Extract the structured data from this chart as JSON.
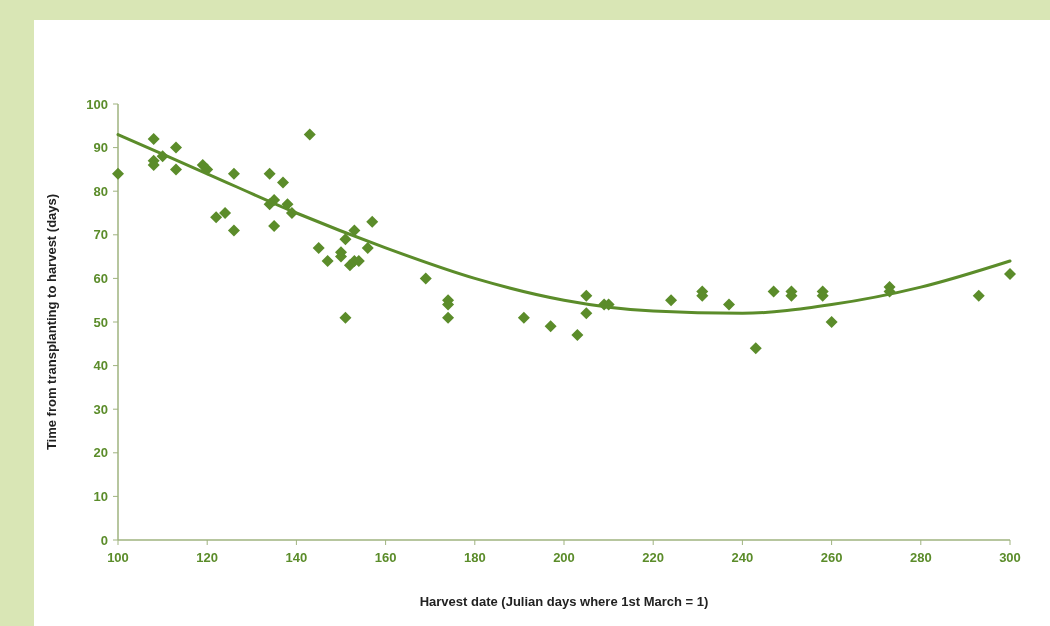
{
  "chart_data": {
    "type": "scatter",
    "xlabel": "Harvest date (Julian days where 1st March = 1)",
    "ylabel": "Time from transplanting to harvest (days)",
    "xlim": [
      100,
      300
    ],
    "xticks": [
      100,
      120,
      140,
      160,
      180,
      200,
      220,
      240,
      260,
      280,
      300
    ],
    "ylim": [
      0,
      100
    ],
    "yticks": [
      0,
      10,
      20,
      30,
      40,
      50,
      60,
      70,
      80,
      90,
      100
    ],
    "grid": false,
    "series": [
      {
        "marker": "diamond",
        "color": "#5b8c2a",
        "x": [
          100,
          108,
          108,
          108,
          110,
          113,
          113,
          119,
          120,
          122,
          124,
          126,
          126,
          134,
          134,
          135,
          135,
          137,
          138,
          139,
          143,
          145,
          147,
          150,
          150,
          151,
          151,
          152,
          153,
          153,
          154,
          156,
          157,
          169,
          174,
          174,
          174,
          191,
          197,
          203,
          205,
          205,
          209,
          210,
          224,
          231,
          231,
          237,
          243,
          247,
          251,
          251,
          258,
          258,
          260,
          273,
          273,
          293,
          300
        ],
        "values": [
          84,
          92,
          87,
          86,
          88,
          90,
          85,
          86,
          85,
          74,
          75,
          84,
          71,
          84,
          77,
          78,
          72,
          82,
          77,
          75,
          93,
          67,
          64,
          66,
          65,
          69,
          51,
          63,
          71,
          64,
          64,
          67,
          73,
          60,
          55,
          54,
          51,
          51,
          49,
          47,
          56,
          52,
          54,
          54,
          55,
          57,
          56,
          54,
          44,
          57,
          57,
          56,
          57,
          56,
          50,
          58,
          57,
          56,
          61
        ]
      },
      {
        "type": "line",
        "marker": "none",
        "line_style": "solid",
        "color": "#5b8c2a",
        "x": [
          100,
          120,
          140,
          160,
          180,
          200,
          220,
          240,
          260,
          280,
          300
        ],
        "values": [
          93,
          84,
          75,
          67,
          60,
          55,
          52.5,
          52,
          54,
          58,
          64
        ]
      }
    ]
  }
}
